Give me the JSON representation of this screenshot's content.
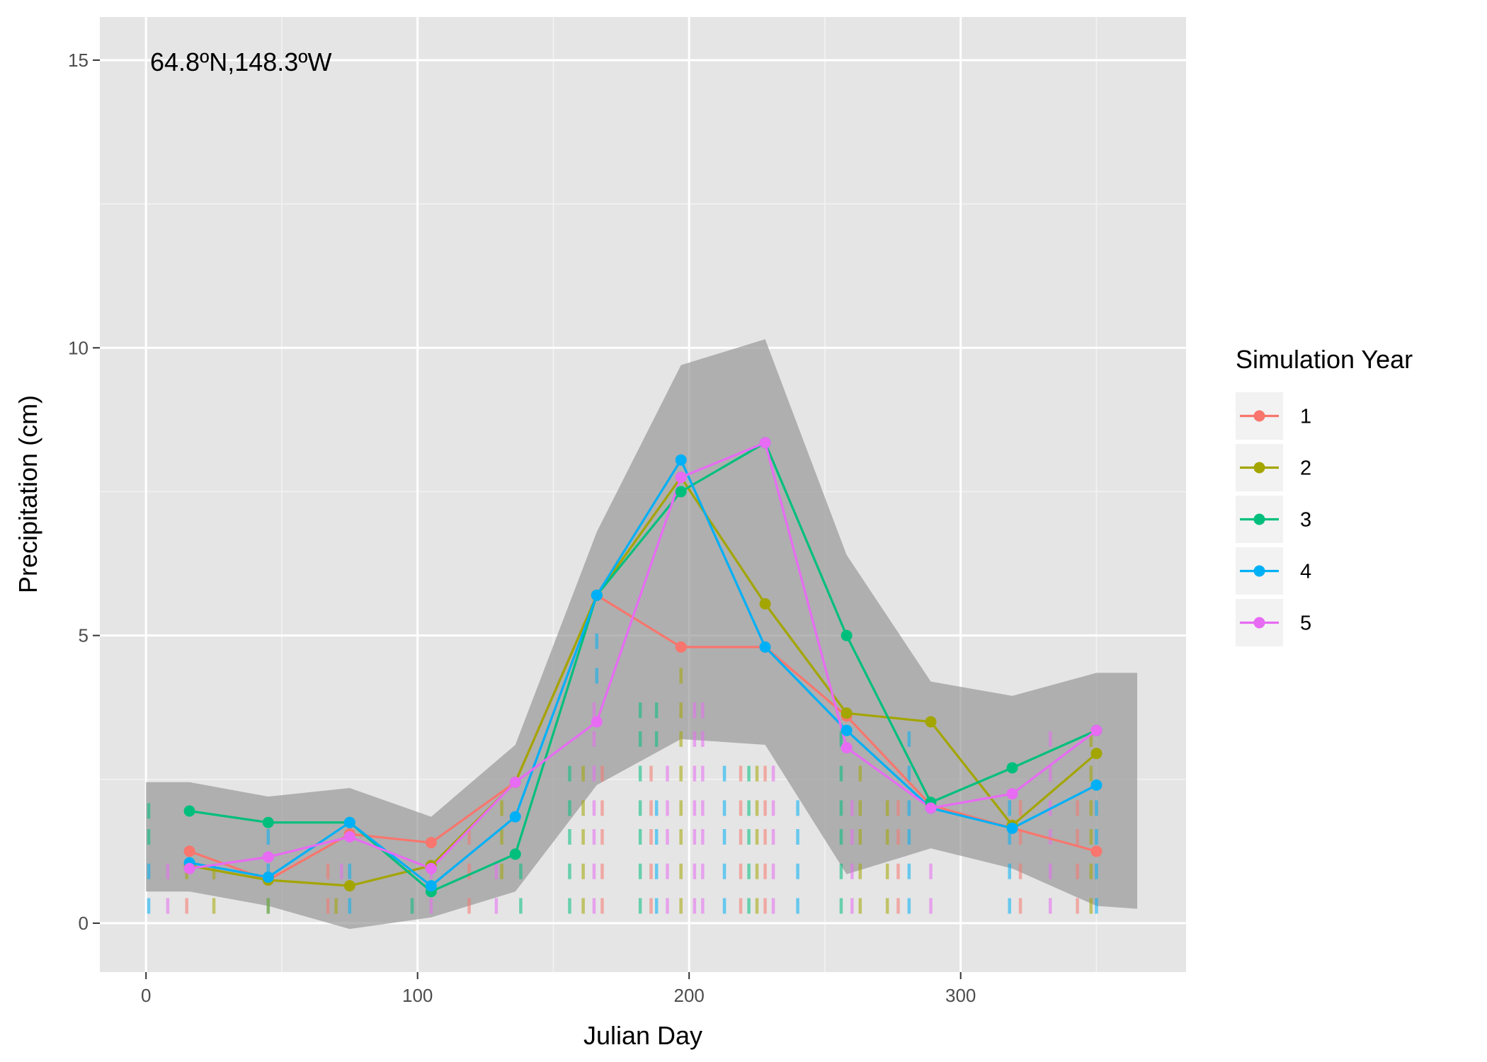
{
  "chart_data": {
    "type": "line",
    "title": "",
    "annotation": "64.8ºN,148.3ºW",
    "xlabel": "Julian Day",
    "ylabel": "Precipitation (cm)",
    "xlim": [
      -17,
      383
    ],
    "ylim": [
      -0.85,
      15.75
    ],
    "x_ticks": [
      0,
      100,
      200,
      300
    ],
    "y_ticks": [
      0,
      5,
      10,
      15
    ],
    "x_tick_labels": [
      "0",
      "100",
      "200",
      "300"
    ],
    "y_tick_labels": [
      "0",
      "5",
      "10",
      "15"
    ],
    "grid": true,
    "legend": {
      "title": "Simulation Year",
      "position": "right"
    },
    "x": [
      16,
      45,
      75,
      105,
      136,
      166,
      197,
      228,
      258,
      289,
      319,
      350
    ],
    "band": {
      "x": [
        0,
        16,
        45,
        75,
        105,
        136,
        166,
        197,
        228,
        258,
        289,
        319,
        350,
        365
      ],
      "lower": [
        0.55,
        0.55,
        0.3,
        -0.1,
        0.1,
        0.55,
        2.4,
        3.2,
        3.1,
        0.85,
        1.3,
        0.95,
        0.3,
        0.25
      ],
      "upper": [
        2.45,
        2.45,
        2.2,
        2.35,
        1.85,
        3.1,
        6.8,
        9.7,
        10.15,
        6.4,
        4.2,
        3.95,
        4.35,
        4.35
      ]
    },
    "series": [
      {
        "name": "1",
        "color": "#F8766D",
        "values": [
          1.25,
          0.75,
          1.55,
          1.4,
          2.45,
          5.7,
          4.8,
          4.8,
          3.6,
          2.05,
          1.65,
          1.25
        ]
      },
      {
        "name": "2",
        "color": "#A3A500",
        "values": [
          1.0,
          0.75,
          0.65,
          1.0,
          2.45,
          5.7,
          7.75,
          5.55,
          3.65,
          3.5,
          1.7,
          2.95
        ]
      },
      {
        "name": "3",
        "color": "#00BF7D",
        "values": [
          1.95,
          1.75,
          1.75,
          0.55,
          1.2,
          5.7,
          7.5,
          8.35,
          5.0,
          2.1,
          2.7,
          3.35
        ]
      },
      {
        "name": "4",
        "color": "#00B0F6",
        "values": [
          1.05,
          0.8,
          1.75,
          0.65,
          1.85,
          5.7,
          8.05,
          4.8,
          3.35,
          2.0,
          1.65,
          2.4
        ]
      },
      {
        "name": "5",
        "color": "#E76BF3",
        "values": [
          0.95,
          1.15,
          1.5,
          0.95,
          2.45,
          3.5,
          7.75,
          8.35,
          3.05,
          2.0,
          2.25,
          3.35
        ]
      }
    ],
    "daily_marks": {
      "note_series_colors": [
        "#F8766D",
        "#A3A500",
        "#00BF7D",
        "#00B0F6",
        "#E76BF3"
      ],
      "points": [
        [
          1,
          0.3,
          3
        ],
        [
          1,
          0.9,
          3
        ],
        [
          1,
          1.5,
          2
        ],
        [
          1,
          1.95,
          2
        ],
        [
          8,
          0.3,
          4
        ],
        [
          8,
          0.9,
          4
        ],
        [
          15,
          0.9,
          1
        ],
        [
          15,
          0.3,
          0
        ],
        [
          25,
          0.3,
          1
        ],
        [
          25,
          0.9,
          1
        ],
        [
          45,
          0.3,
          3
        ],
        [
          45,
          0.9,
          3
        ],
        [
          45,
          1.5,
          3
        ],
        [
          45,
          0.3,
          1
        ],
        [
          67,
          0.3,
          0
        ],
        [
          67,
          0.9,
          0
        ],
        [
          70,
          0.3,
          1
        ],
        [
          72,
          0.9,
          4
        ],
        [
          75,
          0.3,
          3
        ],
        [
          75,
          0.9,
          3
        ],
        [
          98,
          0.3,
          2
        ],
        [
          105,
          0.3,
          4
        ],
        [
          105,
          0.9,
          4
        ],
        [
          119,
          0.3,
          0
        ],
        [
          119,
          0.9,
          0
        ],
        [
          119,
          1.5,
          0
        ],
        [
          129,
          0.3,
          4
        ],
        [
          129,
          0.9,
          4
        ],
        [
          131,
          0.9,
          1
        ],
        [
          131,
          1.5,
          1
        ],
        [
          131,
          2.0,
          1
        ],
        [
          138,
          0.3,
          2
        ],
        [
          138,
          0.9,
          2
        ],
        [
          156,
          0.3,
          2
        ],
        [
          156,
          0.9,
          2
        ],
        [
          156,
          1.5,
          2
        ],
        [
          156,
          2.0,
          2
        ],
        [
          156,
          2.6,
          2
        ],
        [
          161,
          0.3,
          1
        ],
        [
          161,
          0.9,
          1
        ],
        [
          161,
          1.5,
          1
        ],
        [
          161,
          2.0,
          1
        ],
        [
          161,
          2.6,
          1
        ],
        [
          165,
          0.3,
          4
        ],
        [
          165,
          0.9,
          4
        ],
        [
          165,
          1.5,
          4
        ],
        [
          165,
          2.0,
          4
        ],
        [
          165,
          2.6,
          4
        ],
        [
          165,
          3.2,
          4
        ],
        [
          165,
          3.7,
          4
        ],
        [
          166,
          4.3,
          3
        ],
        [
          166,
          4.9,
          3
        ],
        [
          168,
          0.3,
          0
        ],
        [
          168,
          0.9,
          0
        ],
        [
          168,
          1.5,
          0
        ],
        [
          168,
          2.0,
          0
        ],
        [
          168,
          2.6,
          0
        ],
        [
          182,
          0.3,
          2
        ],
        [
          182,
          0.9,
          2
        ],
        [
          182,
          1.5,
          2
        ],
        [
          182,
          2.0,
          2
        ],
        [
          182,
          2.6,
          2
        ],
        [
          182,
          3.2,
          2
        ],
        [
          182,
          3.7,
          2
        ],
        [
          186,
          0.3,
          0
        ],
        [
          186,
          0.9,
          0
        ],
        [
          186,
          1.5,
          0
        ],
        [
          186,
          2.0,
          0
        ],
        [
          186,
          2.6,
          0
        ],
        [
          188,
          0.3,
          3
        ],
        [
          188,
          0.9,
          3
        ],
        [
          188,
          1.5,
          3
        ],
        [
          188,
          2.0,
          3
        ],
        [
          188,
          3.2,
          2
        ],
        [
          188,
          3.7,
          2
        ],
        [
          192,
          0.3,
          4
        ],
        [
          192,
          0.9,
          4
        ],
        [
          192,
          1.5,
          4
        ],
        [
          192,
          2.0,
          4
        ],
        [
          192,
          2.6,
          4
        ],
        [
          197,
          0.3,
          1
        ],
        [
          197,
          0.9,
          1
        ],
        [
          197,
          1.5,
          1
        ],
        [
          197,
          2.0,
          1
        ],
        [
          197,
          2.6,
          1
        ],
        [
          197,
          3.2,
          1
        ],
        [
          197,
          3.7,
          1
        ],
        [
          197,
          4.3,
          1
        ],
        [
          202,
          0.3,
          4
        ],
        [
          202,
          0.9,
          4
        ],
        [
          202,
          1.5,
          4
        ],
        [
          202,
          2.0,
          4
        ],
        [
          202,
          2.6,
          4
        ],
        [
          202,
          3.2,
          4
        ],
        [
          202,
          3.7,
          4
        ],
        [
          205,
          0.3,
          4
        ],
        [
          205,
          0.9,
          4
        ],
        [
          205,
          1.5,
          4
        ],
        [
          205,
          2.0,
          4
        ],
        [
          205,
          2.6,
          4
        ],
        [
          205,
          3.2,
          4
        ],
        [
          205,
          3.7,
          4
        ],
        [
          213,
          0.3,
          3
        ],
        [
          213,
          0.9,
          3
        ],
        [
          213,
          1.5,
          3
        ],
        [
          213,
          2.0,
          3
        ],
        [
          213,
          2.6,
          3
        ],
        [
          219,
          0.3,
          0
        ],
        [
          219,
          0.9,
          0
        ],
        [
          219,
          1.5,
          0
        ],
        [
          219,
          2.0,
          0
        ],
        [
          219,
          2.6,
          0
        ],
        [
          222,
          0.3,
          2
        ],
        [
          222,
          0.9,
          2
        ],
        [
          222,
          1.5,
          2
        ],
        [
          222,
          2.0,
          2
        ],
        [
          222,
          2.6,
          2
        ],
        [
          225,
          0.3,
          1
        ],
        [
          225,
          0.9,
          1
        ],
        [
          225,
          1.5,
          1
        ],
        [
          225,
          2.0,
          1
        ],
        [
          225,
          2.6,
          1
        ],
        [
          228,
          0.3,
          0
        ],
        [
          228,
          0.9,
          0
        ],
        [
          228,
          1.5,
          0
        ],
        [
          228,
          2.0,
          0
        ],
        [
          228,
          2.6,
          0
        ],
        [
          231,
          0.3,
          4
        ],
        [
          231,
          0.9,
          4
        ],
        [
          231,
          1.5,
          4
        ],
        [
          231,
          2.0,
          4
        ],
        [
          231,
          2.6,
          4
        ],
        [
          240,
          0.3,
          3
        ],
        [
          240,
          0.9,
          3
        ],
        [
          240,
          1.5,
          3
        ],
        [
          240,
          2.0,
          3
        ],
        [
          256,
          0.3,
          2
        ],
        [
          256,
          0.9,
          2
        ],
        [
          256,
          1.5,
          2
        ],
        [
          256,
          2.0,
          2
        ],
        [
          256,
          2.6,
          2
        ],
        [
          256,
          3.2,
          2
        ],
        [
          260,
          0.3,
          4
        ],
        [
          260,
          0.9,
          4
        ],
        [
          260,
          1.5,
          4
        ],
        [
          260,
          2.0,
          4
        ],
        [
          263,
          0.3,
          1
        ],
        [
          263,
          0.9,
          1
        ],
        [
          263,
          1.5,
          1
        ],
        [
          263,
          2.0,
          1
        ],
        [
          263,
          2.6,
          1
        ],
        [
          273,
          0.3,
          1
        ],
        [
          273,
          0.9,
          1
        ],
        [
          273,
          1.5,
          1
        ],
        [
          273,
          2.0,
          1
        ],
        [
          277,
          0.3,
          0
        ],
        [
          277,
          0.9,
          0
        ],
        [
          277,
          1.5,
          0
        ],
        [
          277,
          2.0,
          0
        ],
        [
          281,
          0.3,
          3
        ],
        [
          281,
          0.9,
          3
        ],
        [
          281,
          1.5,
          3
        ],
        [
          281,
          2.0,
          3
        ],
        [
          281,
          2.6,
          3
        ],
        [
          281,
          3.2,
          3
        ],
        [
          289,
          0.3,
          4
        ],
        [
          289,
          0.9,
          4
        ],
        [
          318,
          0.3,
          3
        ],
        [
          318,
          0.9,
          3
        ],
        [
          318,
          1.5,
          3
        ],
        [
          318,
          2.0,
          3
        ],
        [
          322,
          0.3,
          0
        ],
        [
          322,
          0.9,
          0
        ],
        [
          322,
          1.5,
          0
        ],
        [
          322,
          2.0,
          0
        ],
        [
          333,
          0.3,
          4
        ],
        [
          333,
          0.9,
          4
        ],
        [
          333,
          1.5,
          4
        ],
        [
          333,
          2.0,
          4
        ],
        [
          333,
          2.6,
          4
        ],
        [
          333,
          3.2,
          4
        ],
        [
          343,
          0.3,
          0
        ],
        [
          343,
          0.9,
          0
        ],
        [
          343,
          1.5,
          0
        ],
        [
          343,
          2.0,
          0
        ],
        [
          348,
          0.3,
          1
        ],
        [
          348,
          0.9,
          1
        ],
        [
          348,
          1.5,
          1
        ],
        [
          348,
          2.0,
          1
        ],
        [
          348,
          2.6,
          1
        ],
        [
          348,
          3.2,
          1
        ],
        [
          350,
          0.3,
          3
        ],
        [
          350,
          0.9,
          3
        ],
        [
          350,
          1.5,
          3
        ],
        [
          350,
          2.0,
          3
        ]
      ]
    }
  }
}
